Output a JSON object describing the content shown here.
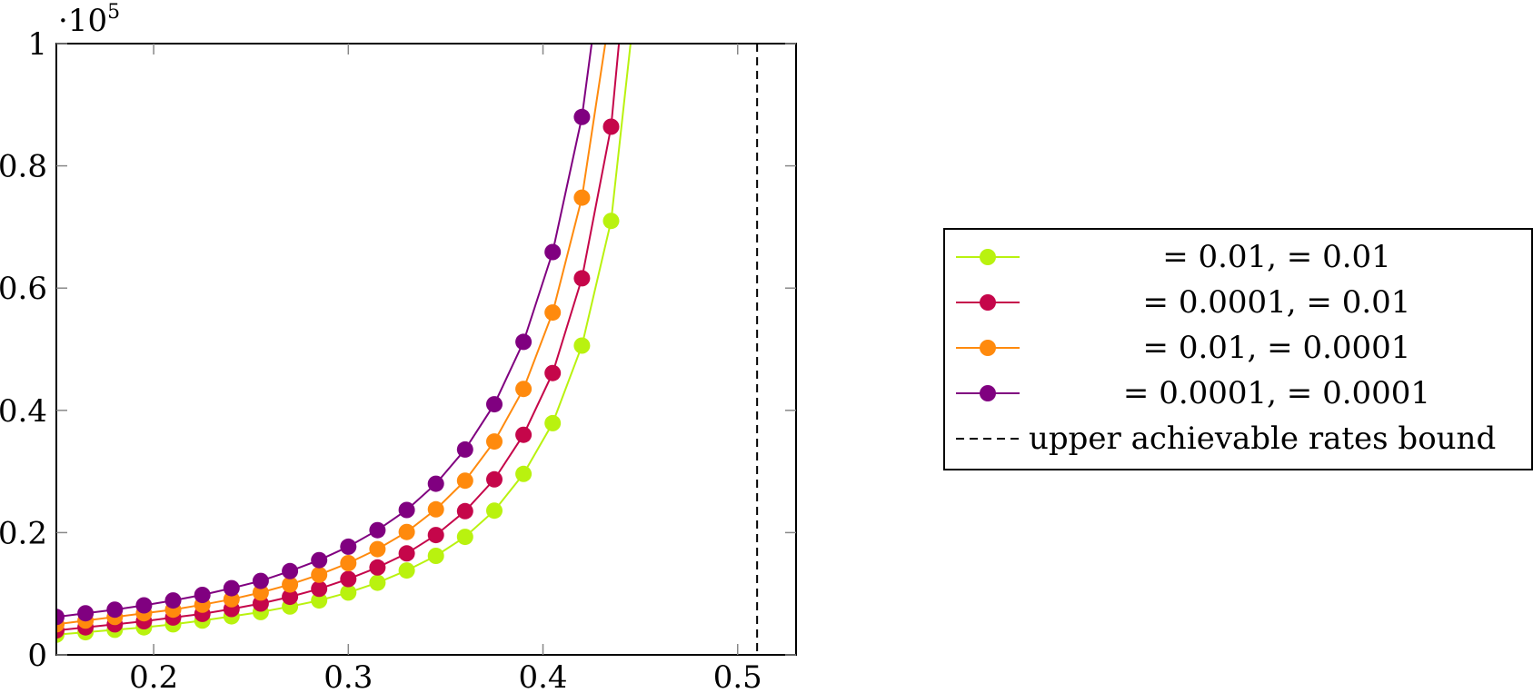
{
  "chart_data": {
    "type": "line",
    "title": "",
    "xlabel": "",
    "ylabel": "",
    "y_multiplier_label": {
      "base": "·10",
      "exponent": "5"
    },
    "xlim": [
      0.15,
      0.53
    ],
    "ylim": [
      0,
      1
    ],
    "xticks": [
      {
        "value": 0.2,
        "label": "0.2"
      },
      {
        "value": 0.3,
        "label": "0.3"
      },
      {
        "value": 0.4,
        "label": "0.4"
      },
      {
        "value": 0.5,
        "label": "0.5"
      }
    ],
    "yticks": [
      {
        "value": 0,
        "label": "0"
      },
      {
        "value": 0.2,
        "label": "0.2"
      },
      {
        "value": 0.4,
        "label": "0.4"
      },
      {
        "value": 0.6,
        "label": "0.6"
      },
      {
        "value": 0.8,
        "label": "0.8"
      },
      {
        "value": 1,
        "label": "1"
      }
    ],
    "grid": false,
    "legend_position": "right",
    "series": [
      {
        "name": "= 0.01, = 0.01",
        "color": "#b9f20f",
        "x": [
          0.15,
          0.165,
          0.18,
          0.195,
          0.21,
          0.225,
          0.24,
          0.255,
          0.27,
          0.285,
          0.3,
          0.315,
          0.33,
          0.345,
          0.36,
          0.375,
          0.39,
          0.405,
          0.42,
          0.435
        ],
        "y": [
          0.033,
          0.037,
          0.041,
          0.045,
          0.05,
          0.056,
          0.063,
          0.07,
          0.079,
          0.089,
          0.102,
          0.118,
          0.138,
          0.162,
          0.193,
          0.236,
          0.296,
          0.379,
          0.506,
          0.71
        ],
        "curve_end": [
          0.445,
          1.0
        ]
      },
      {
        "name": "= 0.0001, = 0.01",
        "color": "#c5064a",
        "x": [
          0.15,
          0.165,
          0.18,
          0.195,
          0.21,
          0.225,
          0.24,
          0.255,
          0.27,
          0.285,
          0.3,
          0.315,
          0.33,
          0.345,
          0.36,
          0.375,
          0.39,
          0.405,
          0.42,
          0.435
        ],
        "y": [
          0.04,
          0.045,
          0.05,
          0.055,
          0.061,
          0.067,
          0.075,
          0.084,
          0.095,
          0.108,
          0.124,
          0.143,
          0.166,
          0.196,
          0.235,
          0.287,
          0.36,
          0.461,
          0.616,
          0.864
        ],
        "curve_end": [
          0.439,
          1.0
        ]
      },
      {
        "name": "= 0.01, = 0.0001",
        "color": "#ff8a0d",
        "x": [
          0.15,
          0.165,
          0.18,
          0.195,
          0.21,
          0.225,
          0.24,
          0.255,
          0.27,
          0.285,
          0.3,
          0.315,
          0.33,
          0.345,
          0.36,
          0.375,
          0.39,
          0.405,
          0.42
        ],
        "y": [
          0.05,
          0.056,
          0.062,
          0.068,
          0.074,
          0.082,
          0.091,
          0.102,
          0.115,
          0.131,
          0.15,
          0.173,
          0.201,
          0.238,
          0.285,
          0.349,
          0.435,
          0.56,
          0.748
        ],
        "curve_end": [
          0.432,
          1.0
        ]
      },
      {
        "name": "= 0.0001, = 0.0001",
        "color": "#800080",
        "x": [
          0.15,
          0.165,
          0.18,
          0.195,
          0.21,
          0.225,
          0.24,
          0.255,
          0.27,
          0.285,
          0.3,
          0.315,
          0.33,
          0.345,
          0.36,
          0.375,
          0.39,
          0.405,
          0.42
        ],
        "y": [
          0.062,
          0.068,
          0.074,
          0.081,
          0.089,
          0.098,
          0.109,
          0.121,
          0.137,
          0.155,
          0.177,
          0.204,
          0.237,
          0.28,
          0.336,
          0.41,
          0.512,
          0.659,
          0.88
        ],
        "curve_end": [
          0.425,
          1.0
        ]
      }
    ],
    "reference_lines": [
      {
        "name": "upper achievable rates bound",
        "orientation": "vertical",
        "x": 0.51,
        "style": "dashed",
        "color": "#000000"
      }
    ]
  }
}
